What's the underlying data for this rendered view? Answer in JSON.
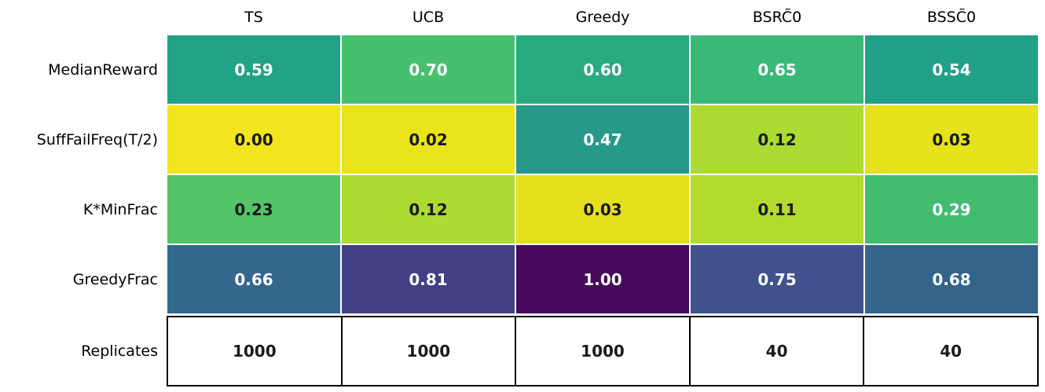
{
  "figure": {
    "background_color": "#ffffff",
    "text_color": "#000000",
    "grid_line_color": "#ffffff",
    "replicates_border_color": "#000000",
    "annotation_black": "#1a1a1a",
    "annotation_white": "#ffffff"
  },
  "chart_data": {
    "type": "heatmap",
    "title": "",
    "colormap": "viridis",
    "legend": false,
    "columns": [
      "TS",
      "UCB",
      "Greedy",
      "BSRC̃0",
      "BSSC̃0"
    ],
    "rows": [
      {
        "label": "MedianReward",
        "values": [
          0.59,
          0.7,
          0.6,
          0.65,
          0.54
        ],
        "display": [
          "0.59",
          "0.70",
          "0.60",
          "0.65",
          "0.54"
        ],
        "cell_colors": [
          "#22a385",
          "#47c06e",
          "#29aa7f",
          "#38b977",
          "#20a188"
        ],
        "text_colors": [
          "#ffffff",
          "#ffffff",
          "#ffffff",
          "#ffffff",
          "#ffffff"
        ]
      },
      {
        "label": "SuffFailFreq(T/2)",
        "values": [
          0.0,
          0.02,
          0.47,
          0.12,
          0.03
        ],
        "display": [
          "0.00",
          "0.02",
          "0.47",
          "0.12",
          "0.03"
        ],
        "cell_colors": [
          "#f2e51e",
          "#e9e31a",
          "#27998b",
          "#addb31",
          "#e6e21b"
        ],
        "text_colors": [
          "#1a1a1a",
          "#1a1a1a",
          "#ffffff",
          "#1a1a1a",
          "#1a1a1a"
        ]
      },
      {
        "label": "K*MinFrac",
        "values": [
          0.23,
          0.12,
          0.03,
          0.11,
          0.29
        ],
        "display": [
          "0.23",
          "0.12",
          "0.03",
          "0.11",
          "0.29"
        ],
        "cell_colors": [
          "#53c467",
          "#addb31",
          "#e4e11c",
          "#b2db2e",
          "#41bc70"
        ],
        "text_colors": [
          "#1a1a1a",
          "#1a1a1a",
          "#1a1a1a",
          "#1a1a1a",
          "#ffffff"
        ]
      },
      {
        "label": "GreedyFrac",
        "values": [
          0.66,
          0.81,
          1.0,
          0.75,
          0.68
        ],
        "display": [
          "0.66",
          "0.81",
          "1.00",
          "0.75",
          "0.68"
        ],
        "cell_colors": [
          "#33678e",
          "#414085",
          "#46095c",
          "#40528d",
          "#33658c"
        ],
        "text_colors": [
          "#ffffff",
          "#ffffff",
          "#ffffff",
          "#ffffff",
          "#ffffff"
        ]
      }
    ],
    "replicates": {
      "label": "Replicates",
      "values": [
        1000,
        1000,
        1000,
        40,
        40
      ],
      "display": [
        "1000",
        "1000",
        "1000",
        "40",
        "40"
      ]
    }
  }
}
